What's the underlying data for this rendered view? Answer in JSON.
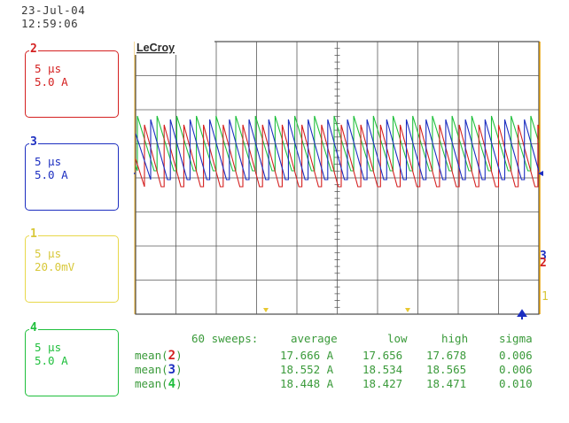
{
  "datetime": {
    "date": "23-Jul-04",
    "time": "12:59:06"
  },
  "brand": "LeCroy",
  "colors": {
    "ch2": "#d42020",
    "ch3": "#1c2ec0",
    "ch1": "#e8d84a",
    "ch4": "#1fbf3c",
    "grid": "#5a5a5a",
    "frame": "#e8a000"
  },
  "channels": [
    {
      "num": "2",
      "timebase": "5 µs",
      "scale": "5.0 A"
    },
    {
      "num": "3",
      "timebase": "5 µs",
      "scale": "5.0 A"
    },
    {
      "num": "1",
      "timebase": "5 µs",
      "scale": "20.0mV"
    },
    {
      "num": "4",
      "timebase": "5 µs",
      "scale": "5.0 A"
    }
  ],
  "markers": {
    "right_ch3": "3",
    "right_ch2": "2",
    "right_ch1": "1"
  },
  "stats": {
    "header": {
      "sweeps": "60 sweeps:",
      "average": "average",
      "low": "low",
      "high": "high",
      "sigma": "sigma"
    },
    "rows": [
      {
        "label_pre": "mean(",
        "channel": "2",
        "label_post": ")",
        "average": "17.666 A",
        "low": "17.656",
        "high": "17.678",
        "sigma": "0.006"
      },
      {
        "label_pre": "mean(",
        "channel": "3",
        "label_post": ")",
        "average": "18.552 A",
        "low": "18.534",
        "high": "18.565",
        "sigma": "0.006"
      },
      {
        "label_pre": "mean(",
        "channel": "4",
        "label_post": ")",
        "average": "18.448 A",
        "low": "18.427",
        "high": "18.471",
        "sigma": "0.010"
      }
    ]
  }
}
